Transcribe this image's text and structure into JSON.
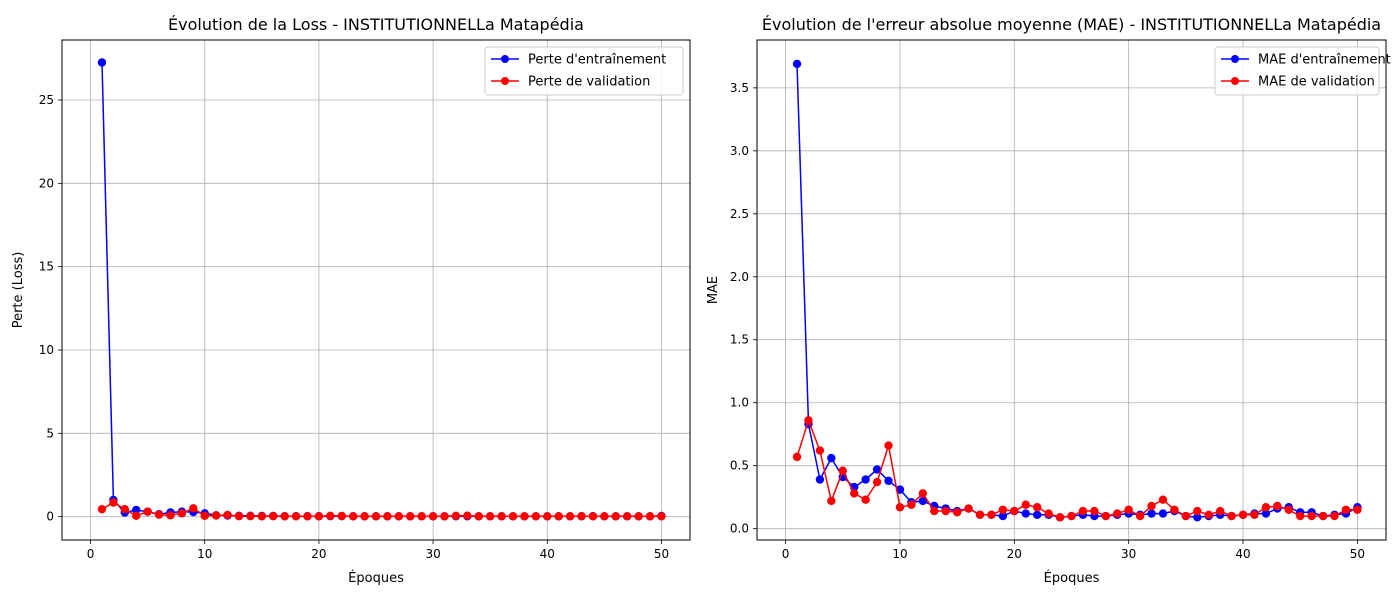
{
  "chart_data": [
    {
      "type": "line",
      "title": "Évolution de la Loss - INSTITUTIONNELLa Matapédia",
      "xlabel": "Époques",
      "ylabel": "Perte (Loss)",
      "xlim": [
        -2.5,
        52.5
      ],
      "ylim": [
        -1.4,
        28.6
      ],
      "xticks": [
        0,
        10,
        20,
        30,
        40,
        50
      ],
      "yticks": [
        0,
        5,
        10,
        15,
        20,
        25
      ],
      "grid": true,
      "legend_position": "top-right",
      "x": [
        1,
        2,
        3,
        4,
        5,
        6,
        7,
        8,
        9,
        10,
        11,
        12,
        13,
        14,
        15,
        16,
        17,
        18,
        19,
        20,
        21,
        22,
        23,
        24,
        25,
        26,
        27,
        28,
        29,
        30,
        31,
        32,
        33,
        34,
        35,
        36,
        37,
        38,
        39,
        40,
        41,
        42,
        43,
        44,
        45,
        46,
        47,
        48,
        49,
        50
      ],
      "series": [
        {
          "name": "Perte d'entraînement",
          "color": "#0000ff",
          "values": [
            27.25,
            1.0,
            0.25,
            0.4,
            0.3,
            0.15,
            0.25,
            0.3,
            0.28,
            0.2,
            0.08,
            0.07,
            0.05,
            0.05,
            0.04,
            0.04,
            0.03,
            0.03,
            0.03,
            0.03,
            0.03,
            0.03,
            0.02,
            0.02,
            0.02,
            0.02,
            0.02,
            0.02,
            0.02,
            0.02,
            0.02,
            0.02,
            0.02,
            0.02,
            0.02,
            0.02,
            0.02,
            0.02,
            0.02,
            0.02,
            0.02,
            0.02,
            0.02,
            0.03,
            0.02,
            0.02,
            0.02,
            0.02,
            0.02,
            0.04
          ]
        },
        {
          "name": "Perte de validation",
          "color": "#ff0000",
          "values": [
            0.45,
            0.85,
            0.45,
            0.05,
            0.3,
            0.12,
            0.08,
            0.2,
            0.5,
            0.05,
            0.07,
            0.1,
            0.03,
            0.03,
            0.02,
            0.03,
            0.02,
            0.02,
            0.02,
            0.02,
            0.05,
            0.04,
            0.02,
            0.02,
            0.02,
            0.02,
            0.02,
            0.02,
            0.02,
            0.02,
            0.02,
            0.05,
            0.06,
            0.02,
            0.02,
            0.02,
            0.02,
            0.02,
            0.02,
            0.02,
            0.02,
            0.02,
            0.03,
            0.02,
            0.02,
            0.02,
            0.02,
            0.02,
            0.02,
            0.02
          ]
        }
      ]
    },
    {
      "type": "line",
      "title": "Évolution de l'erreur absolue moyenne (MAE) - INSTITUTIONNELLa Matapédia",
      "xlabel": "Époques",
      "ylabel": "MAE",
      "xlim": [
        -2.5,
        52.5
      ],
      "ylim": [
        -0.09,
        3.88
      ],
      "xticks": [
        0,
        10,
        20,
        30,
        40,
        50
      ],
      "yticks": [
        0.0,
        0.5,
        1.0,
        1.5,
        2.0,
        2.5,
        3.0,
        3.5
      ],
      "grid": true,
      "legend_position": "top-right",
      "x": [
        1,
        2,
        3,
        4,
        5,
        6,
        7,
        8,
        9,
        10,
        11,
        12,
        13,
        14,
        15,
        16,
        17,
        18,
        19,
        20,
        21,
        22,
        23,
        24,
        25,
        26,
        27,
        28,
        29,
        30,
        31,
        32,
        33,
        34,
        35,
        36,
        37,
        38,
        39,
        40,
        41,
        42,
        43,
        44,
        45,
        46,
        47,
        48,
        49,
        50
      ],
      "series": [
        {
          "name": "MAE d'entraînement",
          "color": "#0000ff",
          "values": [
            3.69,
            0.83,
            0.39,
            0.56,
            0.41,
            0.33,
            0.39,
            0.47,
            0.38,
            0.31,
            0.21,
            0.22,
            0.18,
            0.16,
            0.14,
            0.16,
            0.11,
            0.11,
            0.1,
            0.14,
            0.12,
            0.11,
            0.11,
            0.09,
            0.1,
            0.11,
            0.1,
            0.1,
            0.11,
            0.12,
            0.11,
            0.12,
            0.12,
            0.14,
            0.1,
            0.09,
            0.1,
            0.11,
            0.1,
            0.11,
            0.12,
            0.12,
            0.16,
            0.17,
            0.13,
            0.13,
            0.1,
            0.11,
            0.12,
            0.17
          ]
        },
        {
          "name": "MAE de validation",
          "color": "#ff0000",
          "values": [
            0.57,
            0.86,
            0.62,
            0.22,
            0.46,
            0.28,
            0.23,
            0.37,
            0.66,
            0.17,
            0.19,
            0.28,
            0.14,
            0.14,
            0.13,
            0.16,
            0.11,
            0.11,
            0.15,
            0.14,
            0.19,
            0.17,
            0.12,
            0.09,
            0.1,
            0.14,
            0.14,
            0.1,
            0.12,
            0.15,
            0.1,
            0.18,
            0.23,
            0.15,
            0.1,
            0.14,
            0.11,
            0.14,
            0.1,
            0.11,
            0.11,
            0.17,
            0.18,
            0.15,
            0.1,
            0.1,
            0.1,
            0.1,
            0.15,
            0.15
          ]
        }
      ]
    }
  ]
}
